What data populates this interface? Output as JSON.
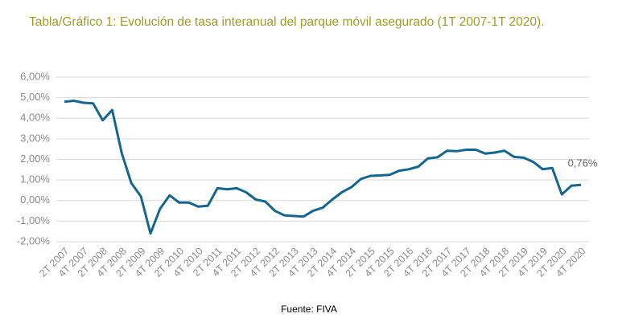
{
  "chart_data": {
    "type": "line",
    "title": "Tabla/Gráfico 1: Evolución de tasa interanual del parque móvil asegurado (1T 2007-1T 2020).",
    "source": "Fuente: FIVA",
    "categories": [
      "2T 2007",
      null,
      "4T 2007",
      null,
      "2T 2008",
      null,
      "4T 2008",
      null,
      "2T 2009",
      null,
      "4T 2009",
      null,
      "2T 2010",
      null,
      "4T 2010",
      null,
      "2T 2011",
      null,
      "4T 2011",
      null,
      "2T 2012",
      null,
      "4T 2012",
      null,
      "2T 2013",
      null,
      "4T 2013",
      null,
      "2T 2014",
      null,
      "4T 2014",
      null,
      "2T 2015",
      null,
      "4T 2015",
      null,
      "2T 2016",
      null,
      "4T 2016",
      null,
      "2T 2017",
      null,
      "4T 2017",
      null,
      "2T 2018",
      null,
      "4T 2018",
      null,
      "2T 2019",
      null,
      "4T 2019",
      null,
      "2T 2020",
      null,
      "4T 2020"
    ],
    "values": [
      4.8,
      4.85,
      4.75,
      4.72,
      3.9,
      4.4,
      2.3,
      0.85,
      0.2,
      -1.6,
      -0.4,
      0.25,
      -0.1,
      -0.1,
      -0.3,
      -0.25,
      0.6,
      0.55,
      0.6,
      0.4,
      0.05,
      -0.05,
      -0.5,
      -0.72,
      -0.75,
      -0.78,
      -0.5,
      -0.35,
      0.05,
      0.4,
      0.65,
      1.05,
      1.2,
      1.22,
      1.25,
      1.45,
      1.52,
      1.65,
      2.05,
      2.1,
      2.42,
      2.4,
      2.47,
      2.47,
      2.28,
      2.33,
      2.42,
      2.12,
      2.08,
      1.88,
      1.52,
      1.58,
      0.3,
      0.72,
      0.76
    ],
    "value_labels": [
      null,
      null,
      null,
      null,
      null,
      null,
      null,
      null,
      null,
      null,
      null,
      null,
      null,
      null,
      null,
      null,
      null,
      null,
      null,
      null,
      null,
      null,
      null,
      null,
      null,
      null,
      null,
      null,
      null,
      null,
      null,
      null,
      null,
      null,
      null,
      null,
      null,
      null,
      null,
      null,
      null,
      null,
      null,
      null,
      null,
      null,
      null,
      null,
      null,
      null,
      null,
      null,
      null,
      null,
      "0,76%"
    ],
    "color": "#15668f",
    "ylim": [
      -2,
      6
    ],
    "yticks": [
      {
        "value": -2,
        "label": "-2,00%"
      },
      {
        "value": -1,
        "label": "-1,00%"
      },
      {
        "value": 0,
        "label": "0,00%"
      },
      {
        "value": 1,
        "label": "1,00%"
      },
      {
        "value": 2,
        "label": "2,00%"
      },
      {
        "value": 3,
        "label": "3,00%"
      },
      {
        "value": 4,
        "label": "4,00%"
      },
      {
        "value": 5,
        "label": "5,00%"
      },
      {
        "value": 6,
        "label": "6,00%"
      }
    ],
    "grid": true
  }
}
